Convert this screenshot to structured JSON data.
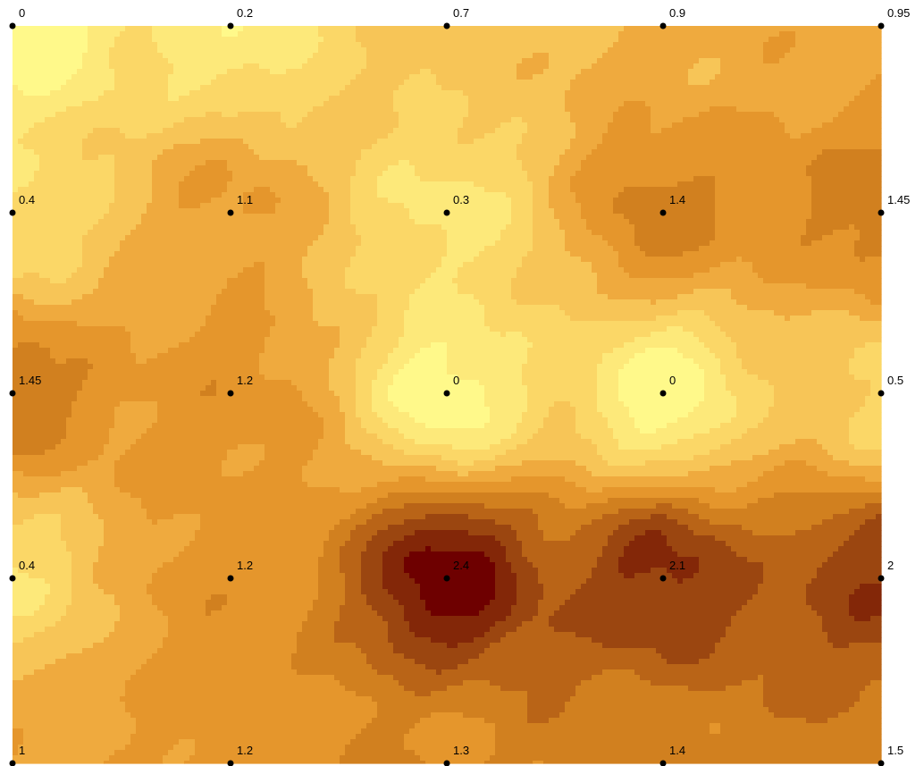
{
  "colors": {
    "ramp": [
      "#fff98a",
      "#fde97a",
      "#fbd767",
      "#f7c557",
      "#efaa3e",
      "#e5962c",
      "#d1801f",
      "#b96417",
      "#9b4610",
      "#832708",
      "#6e0000"
    ],
    "point": "#000000",
    "label": "#000000",
    "background": "#ffffff"
  },
  "grid": {
    "rows": 5,
    "cols": 5,
    "values": [
      [
        0,
        0.2,
        0.7,
        0.9,
        0.95
      ],
      [
        0.4,
        1.1,
        0.3,
        1.4,
        1.45
      ],
      [
        1.45,
        1.2,
        0,
        0,
        0.5
      ],
      [
        0.4,
        1.2,
        2.4,
        2.1,
        2
      ],
      [
        1,
        1.2,
        1.3,
        1.4,
        1.5
      ]
    ]
  },
  "labels": [
    [
      "0",
      "0.2",
      "0.7",
      "0.9",
      "0.95"
    ],
    [
      "0.4",
      "1.1",
      "0.3",
      "1.4",
      "1.45"
    ],
    [
      "1.45",
      "1.2",
      "0",
      "0",
      "0.5"
    ],
    [
      "0.4",
      "1.2",
      "2.4",
      "2.1",
      "2"
    ],
    [
      "1",
      "1.2",
      "1.3",
      "1.4",
      "1.5"
    ]
  ]
}
